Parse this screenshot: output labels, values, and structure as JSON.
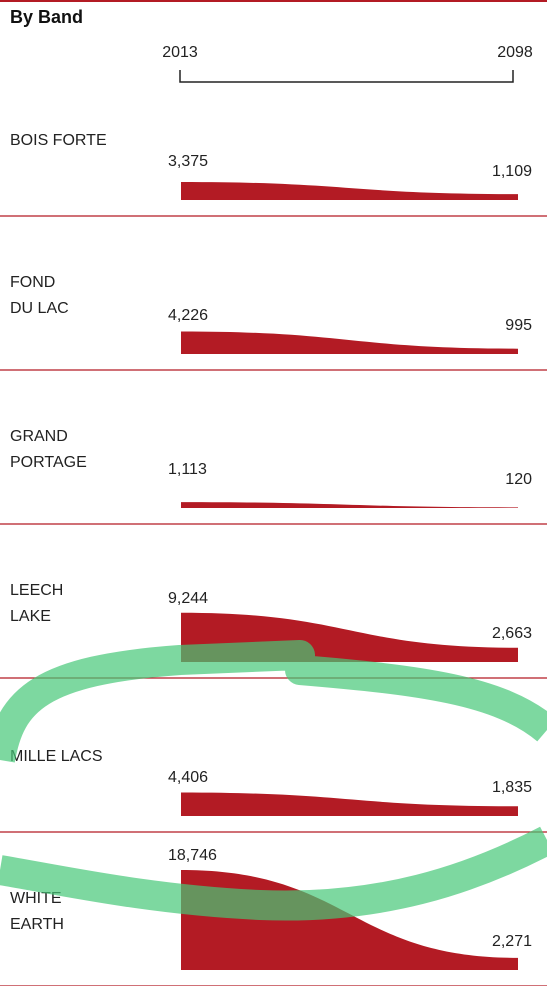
{
  "header": {
    "title": "By Band"
  },
  "chart_data": [
    {
      "type": "area",
      "title": [
        "BOIS FORTE"
      ],
      "x": [
        2013,
        2098
      ],
      "values": [
        3375,
        1109
      ],
      "value_labels": [
        "3,375",
        "1,109"
      ],
      "color": "#b31b24",
      "ylim": [
        0,
        18746
      ]
    },
    {
      "type": "area",
      "title": [
        "FOND",
        "DU LAC"
      ],
      "x": [
        2013,
        2098
      ],
      "values": [
        4226,
        995
      ],
      "value_labels": [
        "4,226",
        "995"
      ],
      "color": "#b31b24",
      "ylim": [
        0,
        18746
      ]
    },
    {
      "type": "area",
      "title": [
        "GRAND",
        "PORTAGE"
      ],
      "x": [
        2013,
        2098
      ],
      "values": [
        1113,
        120
      ],
      "value_labels": [
        "1,113",
        "120"
      ],
      "color": "#b31b24",
      "ylim": [
        0,
        18746
      ]
    },
    {
      "type": "area",
      "title": [
        "LEECH",
        "LAKE"
      ],
      "x": [
        2013,
        2098
      ],
      "values": [
        9244,
        2663
      ],
      "value_labels": [
        "9,244",
        "2,663"
      ],
      "color": "#b31b24",
      "ylim": [
        0,
        18746
      ]
    },
    {
      "type": "area",
      "title": [
        "MILLE LACS"
      ],
      "x": [
        2013,
        2098
      ],
      "values": [
        4406,
        1835
      ],
      "value_labels": [
        "4,406",
        "1,835"
      ],
      "color": "#b31b24",
      "ylim": [
        0,
        18746
      ]
    },
    {
      "type": "area",
      "title": [
        "WHITE",
        "EARTH"
      ],
      "x": [
        2013,
        2098
      ],
      "values": [
        18746,
        2271
      ],
      "value_labels": [
        "18,746",
        "2,271"
      ],
      "color": "#b31b24",
      "ylim": [
        0,
        18746
      ]
    }
  ]
}
